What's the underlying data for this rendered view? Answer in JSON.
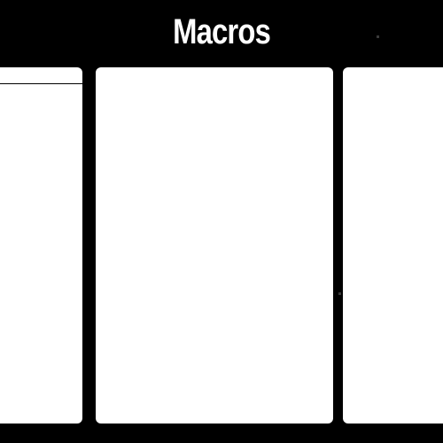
{
  "header": {
    "title": "Macros"
  },
  "colors": {
    "background": "#000000",
    "panel": "#ffffff",
    "title_text": "#ffffff"
  },
  "panels": [
    {
      "id": "left",
      "content": ""
    },
    {
      "id": "center",
      "content": ""
    },
    {
      "id": "right",
      "content": ""
    }
  ]
}
